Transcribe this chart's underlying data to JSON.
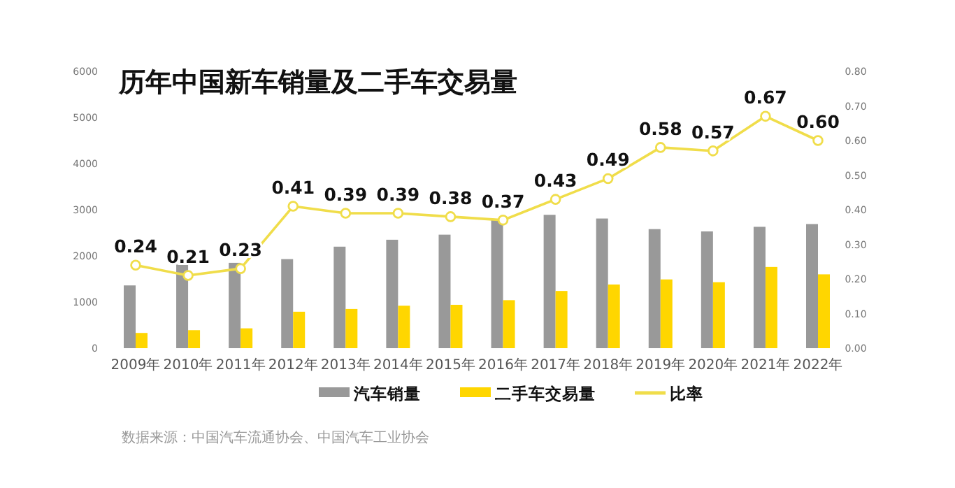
{
  "chart_data": {
    "type": "bar",
    "title": "历年中国新车销量及二手车交易量",
    "categories": [
      "2009年",
      "2010年",
      "2011年",
      "2012年",
      "2013年",
      "2014年",
      "2015年",
      "2016年",
      "2017年",
      "2018年",
      "2019年",
      "2020年",
      "2021年",
      "2022年"
    ],
    "series": [
      {
        "name": "汽车销量",
        "color": "#999999",
        "values": [
          1360,
          1810,
          1850,
          1930,
          2200,
          2350,
          2460,
          2800,
          2890,
          2810,
          2580,
          2530,
          2630,
          2690
        ]
      },
      {
        "name": "二手车交易量",
        "color": "#ffd600",
        "values": [
          330,
          390,
          430,
          790,
          850,
          920,
          940,
          1040,
          1240,
          1380,
          1490,
          1430,
          1760,
          1600
        ]
      },
      {
        "name": "比率",
        "type": "line",
        "axis": "y2",
        "color": "#f0dd4a",
        "values": [
          0.24,
          0.21,
          0.23,
          0.41,
          0.39,
          0.39,
          0.38,
          0.37,
          0.43,
          0.49,
          0.58,
          0.57,
          0.67,
          0.6
        ],
        "value_labels": [
          "0.24",
          "0.21",
          "0.23",
          "0.41",
          "0.39",
          "0.39",
          "0.38",
          "0.37",
          "0.43",
          "0.49",
          "0.58",
          "0.57",
          "0.67",
          "0.60"
        ]
      }
    ],
    "ylim": [
      0,
      6000
    ],
    "yticks": [
      0,
      1000,
      2000,
      3000,
      4000,
      5000,
      6000
    ],
    "y2lim": [
      0,
      0.8
    ],
    "y2ticks": [
      {
        "value": 0,
        "label": "0.00"
      },
      {
        "value": 0.1,
        "label": "0.10"
      },
      {
        "value": 0.2,
        "label": "0.20"
      },
      {
        "value": 0.3,
        "label": "0.30"
      },
      {
        "value": 0.4,
        "label": "0.40"
      },
      {
        "value": 0.5,
        "label": "0.50"
      },
      {
        "value": 0.6,
        "label": "0.60"
      },
      {
        "value": 0.7,
        "label": "0.70"
      },
      {
        "value": 0.8,
        "label": "0.80"
      }
    ],
    "marker": "circle",
    "grid": false,
    "legend": "bottom",
    "annotations": [
      "数据来源：中国汽车流通协会、中国汽车工业协会"
    ]
  }
}
